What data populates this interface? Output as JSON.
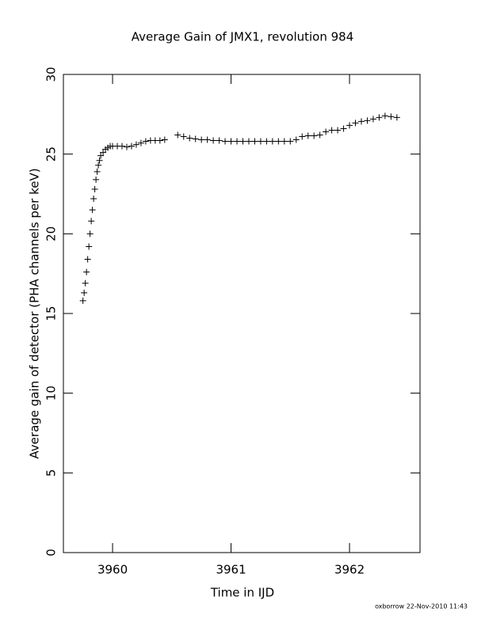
{
  "chart_data": {
    "type": "scatter",
    "title": "Average Gain of JMX1, revolution 984",
    "x_label": "Time in IJD",
    "y_label": "Average gain of detector (PHA channels per keV)",
    "footer": "oxborrow 22-Nov-2010 11:43",
    "marker": "+",
    "color": "#000000",
    "xlim": [
      3959.585,
      3962.595
    ],
    "xticks": [
      3960,
      3961,
      3962
    ],
    "ylim": [
      0,
      30
    ],
    "yticks": [
      0,
      5,
      10,
      15,
      20,
      25,
      30
    ],
    "x": [
      3959.75,
      3959.76,
      3959.77,
      3959.78,
      3959.79,
      3959.8,
      3959.81,
      3959.82,
      3959.83,
      3959.84,
      3959.85,
      3959.86,
      3959.87,
      3959.88,
      3959.89,
      3959.9,
      3959.92,
      3959.94,
      3959.96,
      3959.98,
      3960.0,
      3960.04,
      3960.08,
      3960.12,
      3960.16,
      3960.2,
      3960.24,
      3960.28,
      3960.32,
      3960.36,
      3960.4,
      3960.44,
      3960.55,
      3960.6,
      3960.65,
      3960.7,
      3960.75,
      3960.8,
      3960.85,
      3960.9,
      3960.95,
      3961.0,
      3961.05,
      3961.1,
      3961.15,
      3961.2,
      3961.25,
      3961.3,
      3961.35,
      3961.4,
      3961.45,
      3961.5,
      3961.55,
      3961.6,
      3961.65,
      3961.7,
      3961.75,
      3961.8,
      3961.85,
      3961.9,
      3961.95,
      3962.0,
      3962.05,
      3962.1,
      3962.15,
      3962.2,
      3962.25,
      3962.3,
      3962.35,
      3962.4
    ],
    "values": [
      15.8,
      16.3,
      16.9,
      17.6,
      18.4,
      19.2,
      20.0,
      20.8,
      21.5,
      22.2,
      22.8,
      23.4,
      23.9,
      24.3,
      24.6,
      24.9,
      25.1,
      25.3,
      25.4,
      25.5,
      25.5,
      25.5,
      25.5,
      25.45,
      25.5,
      25.6,
      25.7,
      25.8,
      25.85,
      25.85,
      25.85,
      25.9,
      26.2,
      26.1,
      26.0,
      25.95,
      25.9,
      25.9,
      25.85,
      25.85,
      25.8,
      25.8,
      25.8,
      25.8,
      25.8,
      25.8,
      25.8,
      25.8,
      25.8,
      25.8,
      25.8,
      25.8,
      25.9,
      26.1,
      26.15,
      26.15,
      26.2,
      26.4,
      26.5,
      26.5,
      26.6,
      26.8,
      26.95,
      27.05,
      27.1,
      27.2,
      27.3,
      27.4,
      27.35,
      27.3
    ]
  }
}
